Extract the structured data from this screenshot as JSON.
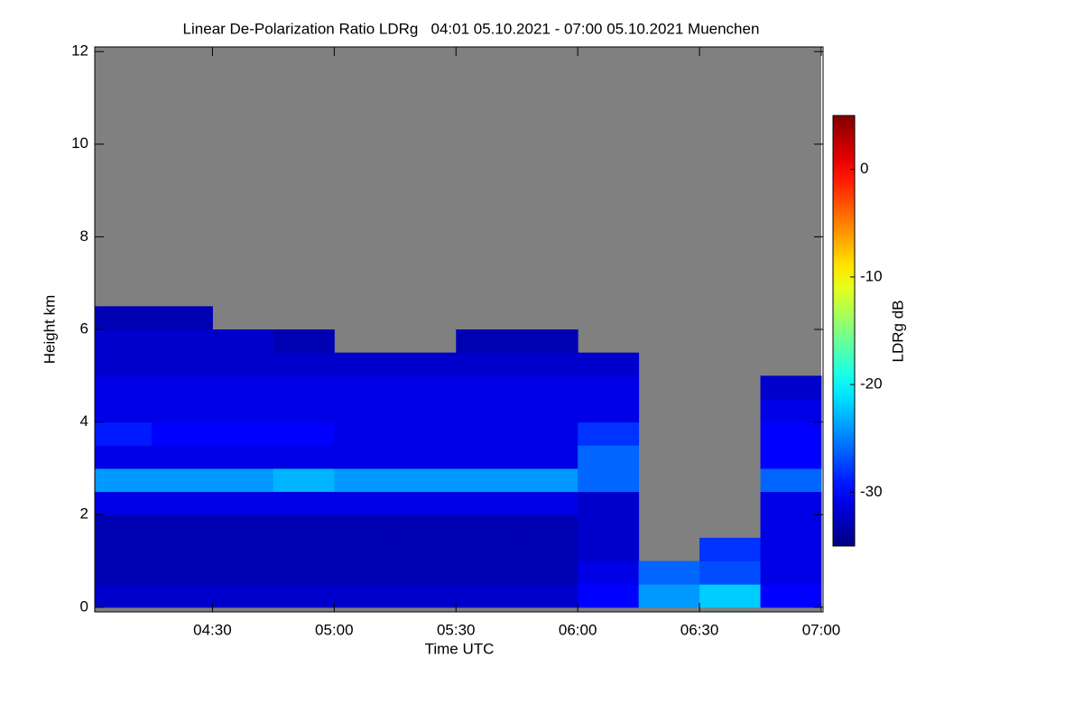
{
  "chart_data": {
    "type": "heatmap",
    "title": "Linear De-Polarization Ratio LDRg   04:01 05.10.2021 - 07:00 05.10.2021 Muenchen",
    "x_label": "Time UTC",
    "y_label": "Height km",
    "colorbar_label": "LDRg dB",
    "xlim": [
      241,
      420
    ],
    "xticks": [
      {
        "value": 270,
        "label": "04:30"
      },
      {
        "value": 300,
        "label": "05:00"
      },
      {
        "value": 330,
        "label": "05:30"
      },
      {
        "value": 360,
        "label": "06:00"
      },
      {
        "value": 390,
        "label": "06:30"
      },
      {
        "value": 420,
        "label": "07:00"
      }
    ],
    "ylim": [
      -0.1,
      12.1
    ],
    "yticks": [
      0,
      2,
      4,
      6,
      8,
      10,
      12
    ],
    "zlim": [
      -35,
      5
    ],
    "zticks": [
      -30,
      -20,
      -10,
      0
    ],
    "colormap": "jet",
    "background_color": "#808080",
    "x_bins": [
      241,
      255,
      270,
      285,
      300,
      315,
      330,
      345,
      360,
      375,
      390,
      405,
      420
    ],
    "y_bins": [
      0,
      0.5,
      1,
      1.5,
      2,
      2.5,
      3,
      3.5,
      4,
      4.5,
      5,
      5.5,
      6,
      6.5,
      7
    ],
    "z": [
      [
        -32,
        -32,
        -32,
        -32,
        -32,
        -32,
        -32,
        -32,
        -30,
        -24,
        -22,
        -30
      ],
      [
        -33,
        -33,
        -33,
        -33,
        -33,
        -33,
        -33,
        -33,
        -31,
        -26,
        -27,
        -31
      ],
      [
        -33,
        -33,
        -33,
        -33,
        -33,
        -33,
        -33,
        -33,
        -32,
        null,
        -28,
        -31
      ],
      [
        -33,
        -33,
        -33,
        -33,
        -33,
        -33,
        -33,
        -33,
        -32,
        null,
        null,
        -31
      ],
      [
        -31,
        -31,
        -31,
        -31,
        -31,
        -31,
        -31,
        -31,
        -32,
        null,
        null,
        -31
      ],
      [
        -24,
        -24,
        -24,
        -23,
        -24,
        -24,
        -24,
        -24,
        -26,
        null,
        null,
        -26
      ],
      [
        -31,
        -31,
        -31,
        -31,
        -31,
        -31,
        -31,
        -31,
        -26,
        null,
        null,
        -30
      ],
      [
        -29,
        -30,
        -30,
        -30,
        -31,
        -31,
        -31,
        -31,
        -28,
        null,
        null,
        -30
      ],
      [
        -31,
        -31,
        -31,
        -31,
        -31,
        -31,
        -31,
        -31,
        -31,
        null,
        null,
        -31
      ],
      [
        -31,
        -31,
        -31,
        -31,
        -31,
        -31,
        -31,
        -31,
        -31,
        null,
        null,
        -32
      ],
      [
        -32,
        -32,
        -32,
        -32,
        -32,
        -32,
        -32,
        -32,
        -32,
        null,
        null,
        null
      ],
      [
        -32,
        -32,
        -32,
        -33,
        null,
        null,
        -33,
        -33,
        null,
        null,
        null,
        null
      ],
      [
        -33,
        -33,
        null,
        null,
        null,
        null,
        null,
        null,
        null,
        null,
        null,
        null
      ],
      [
        null,
        null,
        null,
        null,
        null,
        null,
        null,
        null,
        null,
        null,
        null,
        null
      ]
    ]
  }
}
